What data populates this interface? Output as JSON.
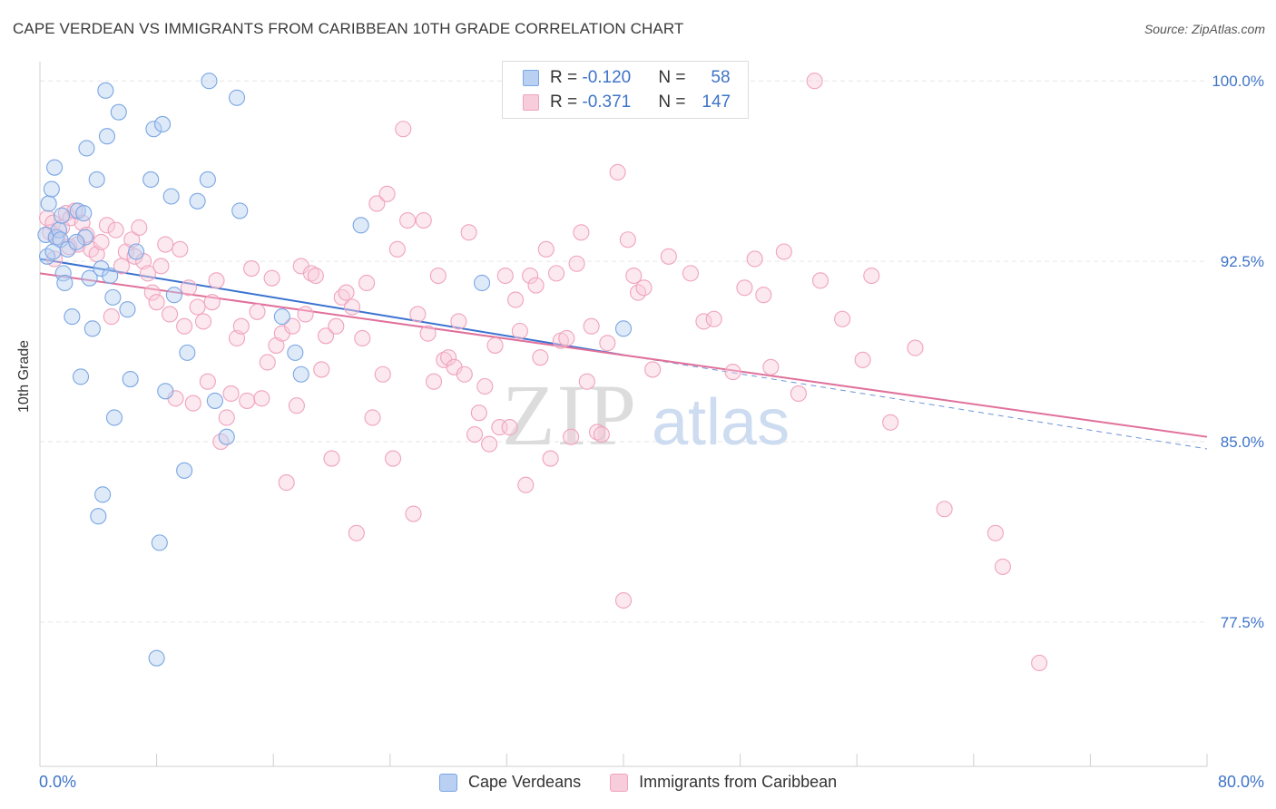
{
  "title": "CAPE VERDEAN VS IMMIGRANTS FROM CARIBBEAN 10TH GRADE CORRELATION CHART",
  "source": "Source: ZipAtlas.com",
  "watermark": {
    "zip": "ZIP",
    "atlas": "atlas"
  },
  "stats": {
    "row1": {
      "r_label": "R = ",
      "r_value": "-0.120",
      "n_label": "N = ",
      "n_value": "58"
    },
    "row2": {
      "r_label": "R = ",
      "r_value": "-0.371",
      "n_label": "N = ",
      "n_value": "147"
    }
  },
  "legend": {
    "series1": "Cape Verdeans",
    "series2": "Immigrants from Caribbean"
  },
  "chart_data": {
    "type": "scatter",
    "title": "CAPE VERDEAN VS IMMIGRANTS FROM CARIBBEAN 10TH GRADE CORRELATION CHART",
    "xlabel": "",
    "ylabel": "10th Grade",
    "xlim": [
      0,
      80
    ],
    "ylim": [
      71.5,
      100.8
    ],
    "x_tick_labels": [
      "0.0%",
      "80.0%"
    ],
    "y_ticks": [
      77.5,
      85.0,
      92.5,
      100.0
    ],
    "y_tick_labels": [
      "77.5%",
      "85.0%",
      "92.5%",
      "100.0%"
    ],
    "grid": true,
    "legend_position": "bottom",
    "series": [
      {
        "name": "Cape Verdeans",
        "color": "#7aa6e3",
        "fill": "#b9d0f2",
        "line_color": "#3a72d0",
        "trend": {
          "x_start": 0,
          "y_start": 92.6,
          "x_end": 40,
          "y_end": 88.6
        },
        "points": [
          [
            0.4,
            93.6
          ],
          [
            0.5,
            92.7
          ],
          [
            0.6,
            94.9
          ],
          [
            0.8,
            95.5
          ],
          [
            1.0,
            96.4
          ],
          [
            1.1,
            93.5
          ],
          [
            1.3,
            93.8
          ],
          [
            1.4,
            93.4
          ],
          [
            1.6,
            92.0
          ],
          [
            1.7,
            91.6
          ],
          [
            1.9,
            93.0
          ],
          [
            2.2,
            90.2
          ],
          [
            2.6,
            94.6
          ],
          [
            2.8,
            87.7
          ],
          [
            3.0,
            94.5
          ],
          [
            3.1,
            93.5
          ],
          [
            3.2,
            97.2
          ],
          [
            3.4,
            91.8
          ],
          [
            3.6,
            89.7
          ],
          [
            3.9,
            95.9
          ],
          [
            4.2,
            92.2
          ],
          [
            4.3,
            82.8
          ],
          [
            4.5,
            99.6
          ],
          [
            4.6,
            97.7
          ],
          [
            4.8,
            91.9
          ],
          [
            5.0,
            91.0
          ],
          [
            5.1,
            86.0
          ],
          [
            5.4,
            98.7
          ],
          [
            6.0,
            90.5
          ],
          [
            6.2,
            87.6
          ],
          [
            6.6,
            92.9
          ],
          [
            7.6,
            95.9
          ],
          [
            7.8,
            98.0
          ],
          [
            8.0,
            76.0
          ],
          [
            8.2,
            80.8
          ],
          [
            8.4,
            98.2
          ],
          [
            8.6,
            87.1
          ],
          [
            9.0,
            95.2
          ],
          [
            9.2,
            91.1
          ],
          [
            9.9,
            83.8
          ],
          [
            10.1,
            88.7
          ],
          [
            10.8,
            95.0
          ],
          [
            11.5,
            95.9
          ],
          [
            11.6,
            100.0
          ],
          [
            12.0,
            86.7
          ],
          [
            12.8,
            85.2
          ],
          [
            13.5,
            99.3
          ],
          [
            13.7,
            94.6
          ],
          [
            16.6,
            90.2
          ],
          [
            17.5,
            88.7
          ],
          [
            17.9,
            87.8
          ],
          [
            22.0,
            94.0
          ],
          [
            30.3,
            91.6
          ],
          [
            40.0,
            89.7
          ],
          [
            4.0,
            81.9
          ],
          [
            1.5,
            94.4
          ],
          [
            2.5,
            93.3
          ],
          [
            0.9,
            92.9
          ]
        ]
      },
      {
        "name": "Immigrants from Caribbean",
        "color": "#f0a3bd",
        "fill": "#f8cddb",
        "line_color": "#e0709a",
        "trend": {
          "x_start": 0,
          "y_start": 92.0,
          "x_end": 80,
          "y_end": 85.2
        },
        "trend_dashed": {
          "x_start": 40,
          "y_start": 88.6,
          "x_end": 80,
          "y_end": 84.7
        },
        "points": [
          [
            0.5,
            94.3
          ],
          [
            0.7,
            93.7
          ],
          [
            0.9,
            94.1
          ],
          [
            1.2,
            93.5
          ],
          [
            1.5,
            93.9
          ],
          [
            1.8,
            94.5
          ],
          [
            2.1,
            94.3
          ],
          [
            2.4,
            94.6
          ],
          [
            2.6,
            93.2
          ],
          [
            2.9,
            94.1
          ],
          [
            3.2,
            93.6
          ],
          [
            3.5,
            93.0
          ],
          [
            3.9,
            92.8
          ],
          [
            4.2,
            93.3
          ],
          [
            4.6,
            94.0
          ],
          [
            4.9,
            90.2
          ],
          [
            5.2,
            93.8
          ],
          [
            5.6,
            92.3
          ],
          [
            5.9,
            92.9
          ],
          [
            6.3,
            93.4
          ],
          [
            6.5,
            92.7
          ],
          [
            6.8,
            93.9
          ],
          [
            7.1,
            92.5
          ],
          [
            7.4,
            92.0
          ],
          [
            7.7,
            91.2
          ],
          [
            8.0,
            90.8
          ],
          [
            8.3,
            92.3
          ],
          [
            8.6,
            93.2
          ],
          [
            8.9,
            90.3
          ],
          [
            9.3,
            86.8
          ],
          [
            9.6,
            93.0
          ],
          [
            9.9,
            89.8
          ],
          [
            10.2,
            91.4
          ],
          [
            10.5,
            86.6
          ],
          [
            10.8,
            90.6
          ],
          [
            11.2,
            90.0
          ],
          [
            11.5,
            87.5
          ],
          [
            11.8,
            90.8
          ],
          [
            12.1,
            91.7
          ],
          [
            12.4,
            85.0
          ],
          [
            12.8,
            86.0
          ],
          [
            13.1,
            87.0
          ],
          [
            13.5,
            89.3
          ],
          [
            13.8,
            89.8
          ],
          [
            14.2,
            86.7
          ],
          [
            14.5,
            92.2
          ],
          [
            14.9,
            90.4
          ],
          [
            15.2,
            86.8
          ],
          [
            15.6,
            88.3
          ],
          [
            15.9,
            91.8
          ],
          [
            16.2,
            89.0
          ],
          [
            16.6,
            89.5
          ],
          [
            16.9,
            83.3
          ],
          [
            17.3,
            89.8
          ],
          [
            17.6,
            86.5
          ],
          [
            17.9,
            92.3
          ],
          [
            18.2,
            90.3
          ],
          [
            18.6,
            92.0
          ],
          [
            18.9,
            91.9
          ],
          [
            19.3,
            88.0
          ],
          [
            19.6,
            89.4
          ],
          [
            20.0,
            84.3
          ],
          [
            20.3,
            89.8
          ],
          [
            20.7,
            91.0
          ],
          [
            21.0,
            91.2
          ],
          [
            21.4,
            90.6
          ],
          [
            21.7,
            81.2
          ],
          [
            22.1,
            89.3
          ],
          [
            22.4,
            91.6
          ],
          [
            22.8,
            86.0
          ],
          [
            23.1,
            94.9
          ],
          [
            23.5,
            87.8
          ],
          [
            23.8,
            95.3
          ],
          [
            24.2,
            84.3
          ],
          [
            24.5,
            93.0
          ],
          [
            24.9,
            98.0
          ],
          [
            25.2,
            94.2
          ],
          [
            25.6,
            82.0
          ],
          [
            25.9,
            90.3
          ],
          [
            26.3,
            94.2
          ],
          [
            26.6,
            89.5
          ],
          [
            27.0,
            87.5
          ],
          [
            27.3,
            91.9
          ],
          [
            27.7,
            88.4
          ],
          [
            28.0,
            88.5
          ],
          [
            28.4,
            88.1
          ],
          [
            28.7,
            90.0
          ],
          [
            29.1,
            87.8
          ],
          [
            29.4,
            93.7
          ],
          [
            29.8,
            85.3
          ],
          [
            30.1,
            86.2
          ],
          [
            30.5,
            87.3
          ],
          [
            30.8,
            84.9
          ],
          [
            31.2,
            89.0
          ],
          [
            31.5,
            85.6
          ],
          [
            31.9,
            91.9
          ],
          [
            32.2,
            85.6
          ],
          [
            32.6,
            90.9
          ],
          [
            32.9,
            89.6
          ],
          [
            33.3,
            83.2
          ],
          [
            33.6,
            91.9
          ],
          [
            34.0,
            91.5
          ],
          [
            34.3,
            88.5
          ],
          [
            34.7,
            93.0
          ],
          [
            35.0,
            84.3
          ],
          [
            35.4,
            92.0
          ],
          [
            35.7,
            89.2
          ],
          [
            36.1,
            89.3
          ],
          [
            36.4,
            85.2
          ],
          [
            36.8,
            92.4
          ],
          [
            37.1,
            93.7
          ],
          [
            37.5,
            87.5
          ],
          [
            37.8,
            89.8
          ],
          [
            38.2,
            85.4
          ],
          [
            38.5,
            85.3
          ],
          [
            38.9,
            89.1
          ],
          [
            39.6,
            96.2
          ],
          [
            40.0,
            78.4
          ],
          [
            40.3,
            93.4
          ],
          [
            40.7,
            91.9
          ],
          [
            41.0,
            91.2
          ],
          [
            41.4,
            91.4
          ],
          [
            42.0,
            88.0
          ],
          [
            43.1,
            92.7
          ],
          [
            44.6,
            92.0
          ],
          [
            45.5,
            90.0
          ],
          [
            46.2,
            90.1
          ],
          [
            47.5,
            87.9
          ],
          [
            48.3,
            91.4
          ],
          [
            49.0,
            92.6
          ],
          [
            49.6,
            91.1
          ],
          [
            50.1,
            88.1
          ],
          [
            51.0,
            92.9
          ],
          [
            52.0,
            87.0
          ],
          [
            53.1,
            100.0
          ],
          [
            53.5,
            91.7
          ],
          [
            55.0,
            90.1
          ],
          [
            56.4,
            88.4
          ],
          [
            57.0,
            91.9
          ],
          [
            58.3,
            85.8
          ],
          [
            60.0,
            88.9
          ],
          [
            62.0,
            82.2
          ],
          [
            65.5,
            81.2
          ],
          [
            66.0,
            79.8
          ],
          [
            68.5,
            75.8
          ],
          [
            1.0,
            92.6
          ],
          [
            2.0,
            93.1
          ]
        ]
      }
    ]
  }
}
